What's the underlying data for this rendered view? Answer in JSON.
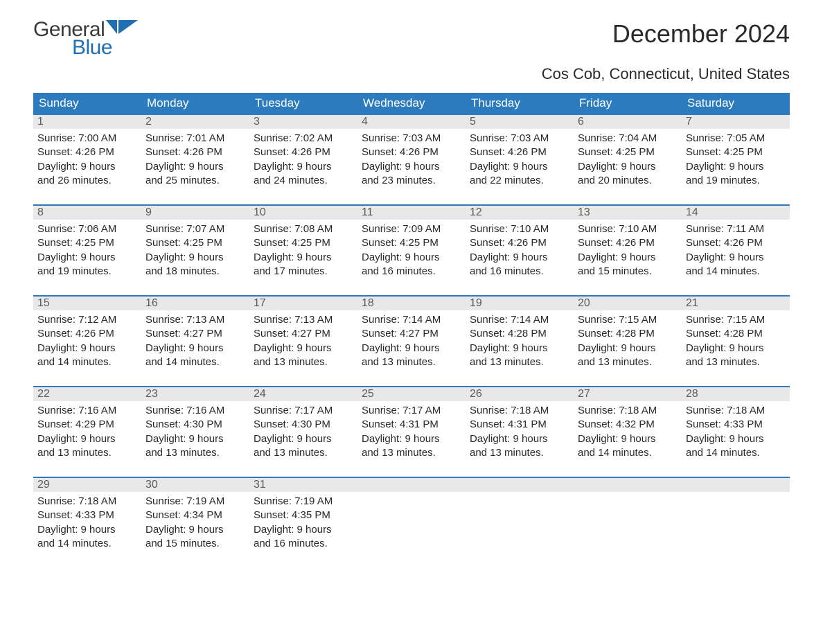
{
  "logo": {
    "general": "General",
    "blue": "Blue"
  },
  "title": "December 2024",
  "location": "Cos Cob, Connecticut, United States",
  "colors": {
    "header_bg": "#2c7bbf",
    "header_text": "#ffffff",
    "daynum_bg": "#e8e8e8",
    "daynum_text": "#5a5a5a",
    "body_text": "#2a2a2a",
    "row_border": "#2c7bbf",
    "logo_gray": "#3a3a3a",
    "logo_blue": "#1f6fb2"
  },
  "weekdays": [
    "Sunday",
    "Monday",
    "Tuesday",
    "Wednesday",
    "Thursday",
    "Friday",
    "Saturday"
  ],
  "labels": {
    "sunrise": "Sunrise:",
    "sunset": "Sunset:",
    "daylight": "Daylight:"
  },
  "weeks": [
    [
      {
        "day": "1",
        "sunrise": "7:00 AM",
        "sunset": "4:26 PM",
        "daylight_l1": "9 hours",
        "daylight_l2": "and 26 minutes."
      },
      {
        "day": "2",
        "sunrise": "7:01 AM",
        "sunset": "4:26 PM",
        "daylight_l1": "9 hours",
        "daylight_l2": "and 25 minutes."
      },
      {
        "day": "3",
        "sunrise": "7:02 AM",
        "sunset": "4:26 PM",
        "daylight_l1": "9 hours",
        "daylight_l2": "and 24 minutes."
      },
      {
        "day": "4",
        "sunrise": "7:03 AM",
        "sunset": "4:26 PM",
        "daylight_l1": "9 hours",
        "daylight_l2": "and 23 minutes."
      },
      {
        "day": "5",
        "sunrise": "7:03 AM",
        "sunset": "4:26 PM",
        "daylight_l1": "9 hours",
        "daylight_l2": "and 22 minutes."
      },
      {
        "day": "6",
        "sunrise": "7:04 AM",
        "sunset": "4:25 PM",
        "daylight_l1": "9 hours",
        "daylight_l2": "and 20 minutes."
      },
      {
        "day": "7",
        "sunrise": "7:05 AM",
        "sunset": "4:25 PM",
        "daylight_l1": "9 hours",
        "daylight_l2": "and 19 minutes."
      }
    ],
    [
      {
        "day": "8",
        "sunrise": "7:06 AM",
        "sunset": "4:25 PM",
        "daylight_l1": "9 hours",
        "daylight_l2": "and 19 minutes."
      },
      {
        "day": "9",
        "sunrise": "7:07 AM",
        "sunset": "4:25 PM",
        "daylight_l1": "9 hours",
        "daylight_l2": "and 18 minutes."
      },
      {
        "day": "10",
        "sunrise": "7:08 AM",
        "sunset": "4:25 PM",
        "daylight_l1": "9 hours",
        "daylight_l2": "and 17 minutes."
      },
      {
        "day": "11",
        "sunrise": "7:09 AM",
        "sunset": "4:25 PM",
        "daylight_l1": "9 hours",
        "daylight_l2": "and 16 minutes."
      },
      {
        "day": "12",
        "sunrise": "7:10 AM",
        "sunset": "4:26 PM",
        "daylight_l1": "9 hours",
        "daylight_l2": "and 16 minutes."
      },
      {
        "day": "13",
        "sunrise": "7:10 AM",
        "sunset": "4:26 PM",
        "daylight_l1": "9 hours",
        "daylight_l2": "and 15 minutes."
      },
      {
        "day": "14",
        "sunrise": "7:11 AM",
        "sunset": "4:26 PM",
        "daylight_l1": "9 hours",
        "daylight_l2": "and 14 minutes."
      }
    ],
    [
      {
        "day": "15",
        "sunrise": "7:12 AM",
        "sunset": "4:26 PM",
        "daylight_l1": "9 hours",
        "daylight_l2": "and 14 minutes."
      },
      {
        "day": "16",
        "sunrise": "7:13 AM",
        "sunset": "4:27 PM",
        "daylight_l1": "9 hours",
        "daylight_l2": "and 14 minutes."
      },
      {
        "day": "17",
        "sunrise": "7:13 AM",
        "sunset": "4:27 PM",
        "daylight_l1": "9 hours",
        "daylight_l2": "and 13 minutes."
      },
      {
        "day": "18",
        "sunrise": "7:14 AM",
        "sunset": "4:27 PM",
        "daylight_l1": "9 hours",
        "daylight_l2": "and 13 minutes."
      },
      {
        "day": "19",
        "sunrise": "7:14 AM",
        "sunset": "4:28 PM",
        "daylight_l1": "9 hours",
        "daylight_l2": "and 13 minutes."
      },
      {
        "day": "20",
        "sunrise": "7:15 AM",
        "sunset": "4:28 PM",
        "daylight_l1": "9 hours",
        "daylight_l2": "and 13 minutes."
      },
      {
        "day": "21",
        "sunrise": "7:15 AM",
        "sunset": "4:28 PM",
        "daylight_l1": "9 hours",
        "daylight_l2": "and 13 minutes."
      }
    ],
    [
      {
        "day": "22",
        "sunrise": "7:16 AM",
        "sunset": "4:29 PM",
        "daylight_l1": "9 hours",
        "daylight_l2": "and 13 minutes."
      },
      {
        "day": "23",
        "sunrise": "7:16 AM",
        "sunset": "4:30 PM",
        "daylight_l1": "9 hours",
        "daylight_l2": "and 13 minutes."
      },
      {
        "day": "24",
        "sunrise": "7:17 AM",
        "sunset": "4:30 PM",
        "daylight_l1": "9 hours",
        "daylight_l2": "and 13 minutes."
      },
      {
        "day": "25",
        "sunrise": "7:17 AM",
        "sunset": "4:31 PM",
        "daylight_l1": "9 hours",
        "daylight_l2": "and 13 minutes."
      },
      {
        "day": "26",
        "sunrise": "7:18 AM",
        "sunset": "4:31 PM",
        "daylight_l1": "9 hours",
        "daylight_l2": "and 13 minutes."
      },
      {
        "day": "27",
        "sunrise": "7:18 AM",
        "sunset": "4:32 PM",
        "daylight_l1": "9 hours",
        "daylight_l2": "and 14 minutes."
      },
      {
        "day": "28",
        "sunrise": "7:18 AM",
        "sunset": "4:33 PM",
        "daylight_l1": "9 hours",
        "daylight_l2": "and 14 minutes."
      }
    ],
    [
      {
        "day": "29",
        "sunrise": "7:18 AM",
        "sunset": "4:33 PM",
        "daylight_l1": "9 hours",
        "daylight_l2": "and 14 minutes."
      },
      {
        "day": "30",
        "sunrise": "7:19 AM",
        "sunset": "4:34 PM",
        "daylight_l1": "9 hours",
        "daylight_l2": "and 15 minutes."
      },
      {
        "day": "31",
        "sunrise": "7:19 AM",
        "sunset": "4:35 PM",
        "daylight_l1": "9 hours",
        "daylight_l2": "and 16 minutes."
      },
      {
        "empty": true
      },
      {
        "empty": true
      },
      {
        "empty": true
      },
      {
        "empty": true
      }
    ]
  ]
}
